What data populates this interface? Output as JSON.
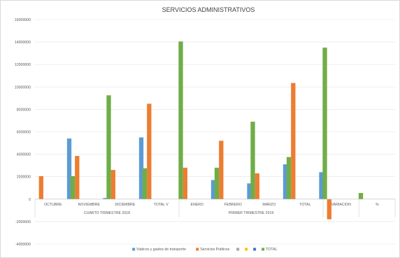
{
  "chart_data": {
    "type": "bar",
    "title": "SERVICIOS ADMINISTRATIVOS",
    "xlabel": "",
    "ylabel": "",
    "ylim": [
      -4000000,
      16000000
    ],
    "yticks": [
      -4000000,
      -2000000,
      0,
      2000000,
      4000000,
      6000000,
      8000000,
      10000000,
      12000000,
      14000000,
      16000000
    ],
    "grid": true,
    "legend_position": "bottom",
    "categories": [
      "OCTUBRE",
      "NOVIEMBRE",
      "DICIEMBRE",
      "TOTAL V",
      "ENERO",
      "FEBRERO",
      "MARZO",
      "TOTAL",
      "VARIACION",
      "%"
    ],
    "groups": [
      {
        "label": "CUARTO TRIMESTRE 2018",
        "span": [
          0,
          3
        ]
      },
      {
        "label": "PRIMER   TRIMESTRE 2019",
        "span": [
          4,
          7
        ]
      },
      {
        "label": "",
        "span": [
          8,
          8
        ]
      },
      {
        "label": "",
        "span": [
          9,
          9
        ]
      }
    ],
    "series": [
      {
        "name": "Viaticos y gastos de transporte",
        "color": "#5B9BD5",
        "values": [
          0,
          5400000,
          100000,
          5500000,
          0,
          1700000,
          1400000,
          3100000,
          2400000,
          0
        ]
      },
      {
        "name": "Servicios Publicos",
        "color": "#ED7D31",
        "values": [
          2050000,
          3850000,
          2600000,
          8500000,
          2800000,
          5200000,
          2300000,
          10350000,
          -1800000,
          0
        ]
      },
      {
        "name": "",
        "color": "#A5A5A5",
        "values": [
          0,
          0,
          0,
          0,
          0,
          0,
          0,
          0,
          0,
          0
        ]
      },
      {
        "name": "",
        "color": "#FFC000",
        "values": [
          0,
          0,
          0,
          0,
          0,
          0,
          0,
          0,
          0,
          0
        ]
      },
      {
        "name": "",
        "color": "#4472C4",
        "values": [
          0,
          0,
          0,
          0,
          0,
          0,
          0,
          0,
          0,
          0
        ]
      },
      {
        "name": "TOTAL",
        "color": "#70AD47",
        "values": [
          2050000,
          9250000,
          2750000,
          14050000,
          2800000,
          6900000,
          3750000,
          13500000,
          550000,
          0
        ]
      }
    ]
  }
}
